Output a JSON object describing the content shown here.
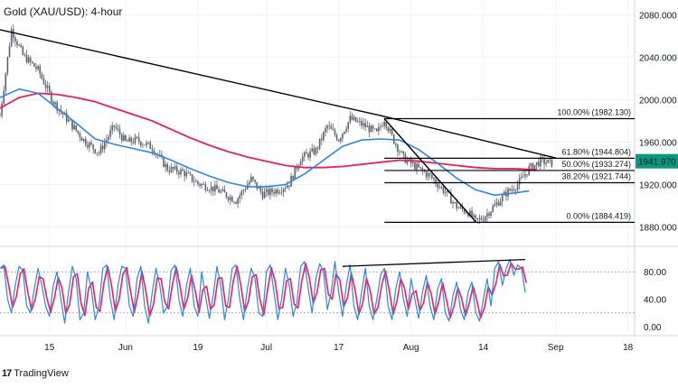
{
  "header": {
    "title": "Gold (XAU/USD): 4-hour"
  },
  "branding": {
    "logo_text": "TradingView"
  },
  "chart_data": {
    "type": "line",
    "title": "Gold (XAU/USD): 4-hour",
    "price_axis": {
      "ylim": [
        1866,
        2094
      ],
      "ticks": [
        "2080.000",
        "2040.000",
        "2000.000",
        "1960.000",
        "1920.000",
        "1880.000"
      ],
      "tick_values": [
        2080,
        2040,
        2000,
        1960,
        1920,
        1880
      ]
    },
    "osc_axis": {
      "ylim": [
        -8,
        108
      ],
      "ticks": [
        "80.00",
        "40.00",
        "0.00"
      ],
      "tick_values": [
        80,
        40,
        0
      ],
      "levels": [
        80,
        20
      ]
    },
    "time_axis": {
      "range": [
        0,
        125
      ],
      "labels": [
        {
          "text": "15",
          "t": 13
        },
        {
          "text": "Jun",
          "t": 33
        },
        {
          "text": "19",
          "t": 52
        },
        {
          "text": "Jul",
          "t": 70
        },
        {
          "text": "17",
          "t": 89
        },
        {
          "text": "Aug",
          "t": 108
        },
        {
          "text": "14",
          "t": 127
        },
        {
          "text": "Sep",
          "t": 146
        },
        {
          "text": "18",
          "t": 165
        }
      ]
    },
    "current_price": {
      "value": 1941.97,
      "label": "1941.970",
      "color": "#089981"
    },
    "price_anchors": [
      [
        0,
        1985
      ],
      [
        3,
        2066
      ],
      [
        6,
        2042
      ],
      [
        10,
        2028
      ],
      [
        14,
        1998
      ],
      [
        18,
        1980
      ],
      [
        22,
        1962
      ],
      [
        26,
        1950
      ],
      [
        30,
        1975
      ],
      [
        33,
        1960
      ],
      [
        36,
        1962
      ],
      [
        40,
        1955
      ],
      [
        44,
        1935
      ],
      [
        48,
        1932
      ],
      [
        52,
        1921
      ],
      [
        57,
        1915
      ],
      [
        62,
        1905
      ],
      [
        66,
        1925
      ],
      [
        69,
        1911
      ],
      [
        73,
        1915
      ],
      [
        76,
        1921
      ],
      [
        79,
        1945
      ],
      [
        83,
        1952
      ],
      [
        86,
        1975
      ],
      [
        89,
        1963
      ],
      [
        92,
        1982
      ],
      [
        96,
        1975
      ],
      [
        99,
        1968
      ],
      [
        101,
        1982
      ],
      [
        103,
        1965
      ],
      [
        106,
        1945
      ],
      [
        110,
        1935
      ],
      [
        113,
        1928
      ],
      [
        117,
        1913
      ],
      [
        120,
        1899
      ],
      [
        123,
        1894
      ],
      [
        125,
        1885
      ],
      [
        127,
        1889
      ],
      [
        130,
        1900
      ],
      [
        133,
        1912
      ],
      [
        136,
        1920
      ],
      [
        139,
        1935
      ],
      [
        142,
        1942
      ],
      [
        145,
        1940
      ]
    ],
    "sma_fast": [
      [
        0,
        2002
      ],
      [
        5,
        2010
      ],
      [
        10,
        2006
      ],
      [
        15,
        1992
      ],
      [
        20,
        1978
      ],
      [
        25,
        1963
      ],
      [
        30,
        1958
      ],
      [
        35,
        1954
      ],
      [
        40,
        1950
      ],
      [
        45,
        1943
      ],
      [
        50,
        1935
      ],
      [
        55,
        1928
      ],
      [
        60,
        1922
      ],
      [
        65,
        1918
      ],
      [
        70,
        1918
      ],
      [
        75,
        1920
      ],
      [
        80,
        1930
      ],
      [
        85,
        1943
      ],
      [
        90,
        1956
      ],
      [
        95,
        1962
      ],
      [
        100,
        1963
      ],
      [
        105,
        1962
      ],
      [
        110,
        1953
      ],
      [
        115,
        1940
      ],
      [
        120,
        1926
      ],
      [
        125,
        1915
      ],
      [
        130,
        1910
      ],
      [
        135,
        1912
      ],
      [
        139,
        1914
      ]
    ],
    "sma_slow": [
      [
        0,
        1992
      ],
      [
        5,
        2002
      ],
      [
        10,
        2006
      ],
      [
        15,
        2005
      ],
      [
        20,
        2002
      ],
      [
        25,
        1998
      ],
      [
        30,
        1992
      ],
      [
        35,
        1986
      ],
      [
        40,
        1980
      ],
      [
        45,
        1972
      ],
      [
        50,
        1964
      ],
      [
        55,
        1957
      ],
      [
        60,
        1951
      ],
      [
        65,
        1946
      ],
      [
        70,
        1942
      ],
      [
        75,
        1938
      ],
      [
        80,
        1936
      ],
      [
        85,
        1936
      ],
      [
        90,
        1937
      ],
      [
        95,
        1939
      ],
      [
        100,
        1941
      ],
      [
        105,
        1943
      ],
      [
        110,
        1942
      ],
      [
        115,
        1940
      ],
      [
        120,
        1938
      ],
      [
        125,
        1936
      ],
      [
        130,
        1935
      ],
      [
        135,
        1935
      ],
      [
        141,
        1934
      ]
    ],
    "stoch_anchors": [
      [
        0,
        85
      ],
      [
        1,
        90
      ],
      [
        2,
        40
      ],
      [
        3,
        20
      ],
      [
        4,
        60
      ],
      [
        5,
        88
      ],
      [
        6,
        82
      ],
      [
        7,
        30
      ],
      [
        8,
        20
      ],
      [
        9,
        55
      ],
      [
        10,
        85
      ],
      [
        11,
        60
      ],
      [
        12,
        30
      ],
      [
        13,
        15
      ],
      [
        14,
        60
      ],
      [
        15,
        80
      ],
      [
        16,
        40
      ],
      [
        17,
        5
      ],
      [
        18,
        50
      ],
      [
        19,
        88
      ],
      [
        20,
        70
      ],
      [
        21,
        10
      ],
      [
        22,
        20
      ],
      [
        23,
        80
      ],
      [
        24,
        55
      ],
      [
        25,
        10
      ],
      [
        26,
        30
      ],
      [
        27,
        85
      ],
      [
        28,
        90
      ],
      [
        29,
        40
      ],
      [
        30,
        10
      ],
      [
        31,
        60
      ],
      [
        32,
        88
      ],
      [
        33,
        85
      ],
      [
        34,
        30
      ],
      [
        35,
        15
      ],
      [
        36,
        70
      ],
      [
        37,
        88
      ],
      [
        38,
        30
      ],
      [
        39,
        5
      ],
      [
        40,
        50
      ],
      [
        41,
        85
      ],
      [
        42,
        60
      ],
      [
        43,
        20
      ],
      [
        44,
        30
      ],
      [
        45,
        82
      ],
      [
        46,
        90
      ],
      [
        47,
        40
      ],
      [
        48,
        15
      ],
      [
        49,
        60
      ],
      [
        50,
        85
      ],
      [
        51,
        30
      ],
      [
        52,
        15
      ],
      [
        53,
        80
      ],
      [
        54,
        45
      ],
      [
        55,
        12
      ],
      [
        56,
        45
      ],
      [
        57,
        88
      ],
      [
        58,
        60
      ],
      [
        59,
        10
      ],
      [
        60,
        40
      ],
      [
        61,
        85
      ],
      [
        62,
        90
      ],
      [
        63,
        40
      ],
      [
        64,
        10
      ],
      [
        65,
        55
      ],
      [
        66,
        85
      ],
      [
        67,
        70
      ],
      [
        68,
        20
      ],
      [
        69,
        15
      ],
      [
        70,
        80
      ],
      [
        71,
        90
      ],
      [
        72,
        50
      ],
      [
        73,
        10
      ],
      [
        74,
        40
      ],
      [
        75,
        85
      ],
      [
        76,
        60
      ],
      [
        77,
        15
      ],
      [
        78,
        35
      ],
      [
        79,
        88
      ],
      [
        80,
        95
      ],
      [
        81,
        55
      ],
      [
        82,
        20
      ],
      [
        83,
        70
      ],
      [
        84,
        92
      ],
      [
        85,
        80
      ],
      [
        86,
        25
      ],
      [
        87,
        50
      ],
      [
        88,
        95
      ],
      [
        89,
        50
      ],
      [
        90,
        15
      ],
      [
        91,
        60
      ],
      [
        92,
        90
      ],
      [
        93,
        30
      ],
      [
        94,
        10
      ],
      [
        95,
        50
      ],
      [
        96,
        85
      ],
      [
        97,
        30
      ],
      [
        98,
        10
      ],
      [
        99,
        40
      ],
      [
        100,
        75
      ],
      [
        101,
        85
      ],
      [
        102,
        30
      ],
      [
        103,
        10
      ],
      [
        104,
        55
      ],
      [
        105,
        80
      ],
      [
        106,
        40
      ],
      [
        107,
        15
      ],
      [
        108,
        70
      ],
      [
        109,
        40
      ],
      [
        110,
        12
      ],
      [
        111,
        50
      ],
      [
        112,
        75
      ],
      [
        113,
        30
      ],
      [
        114,
        10
      ],
      [
        115,
        55
      ],
      [
        116,
        70
      ],
      [
        117,
        20
      ],
      [
        118,
        8
      ],
      [
        119,
        45
      ],
      [
        120,
        65
      ],
      [
        121,
        25
      ],
      [
        122,
        10
      ],
      [
        123,
        50
      ],
      [
        124,
        65
      ],
      [
        125,
        20
      ],
      [
        126,
        8
      ],
      [
        127,
        40
      ],
      [
        128,
        70
      ],
      [
        129,
        30
      ],
      [
        130,
        85
      ],
      [
        131,
        95
      ],
      [
        132,
        60
      ],
      [
        133,
        85
      ],
      [
        134,
        98
      ],
      [
        135,
        75
      ],
      [
        136,
        90
      ],
      [
        137,
        85
      ],
      [
        138,
        50
      ]
    ],
    "trendlines": [
      {
        "name": "",
        "points": [
          [
            0,
            2066
          ],
          [
            100,
            1985
          ],
          [
            146,
            1945
          ]
        ]
      },
      {
        "name": "",
        "points": [
          [
            101,
            1982
          ],
          [
            125,
            1885
          ]
        ]
      }
    ],
    "stoch_trendline": {
      "points": [
        [
          90,
          88
        ],
        [
          138,
          98
        ]
      ]
    },
    "fib_start": 101,
    "fib_levels": [
      {
        "ratio": "100.00%",
        "value": 1982.13,
        "label": "100.00% (1982.130)"
      },
      {
        "ratio": "61.80%",
        "value": 1944.804,
        "label": "61.80% (1944.804)"
      },
      {
        "ratio": "50.00%",
        "value": 1933.274,
        "label": "50.00% (1933.274)"
      },
      {
        "ratio": "38.20%",
        "value": 1921.744,
        "label": "38.20% (1921.744)"
      },
      {
        "ratio": "0.00%",
        "value": 1884.419,
        "label": "0.00% (1884.419)"
      }
    ],
    "colors": {
      "candles": "#5d606b",
      "sma_fast": "#2e86de",
      "sma_slow": "#e91e63",
      "stoch_k": "#2e86de",
      "stoch_d": "#e91e63",
      "trendline": "#000000",
      "grid": "#f0f3fa"
    },
    "grid": true,
    "xlabel": "",
    "ylabel": ""
  }
}
